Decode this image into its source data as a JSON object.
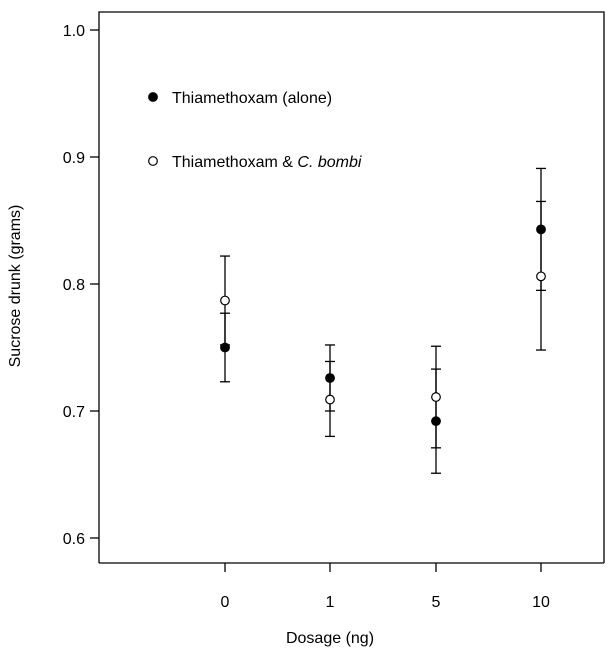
{
  "chart_data": {
    "type": "scatter",
    "title": "",
    "xlabel": "Dosage (ng)",
    "ylabel": "Sucrose drunk (grams)",
    "categories": [
      "0",
      "1",
      "5",
      "10"
    ],
    "ylim": [
      0.6,
      1.0
    ],
    "yticks": [
      "0.6",
      "0.7",
      "0.8",
      "0.9",
      "1.0"
    ],
    "grid": false,
    "legend_position": "top-left",
    "series": [
      {
        "name": "Thiamethoxam (alone)",
        "marker": "filled-circle",
        "values": [
          0.75,
          0.726,
          0.692,
          0.843
        ],
        "error_low": [
          0.723,
          0.7,
          0.651,
          0.795
        ],
        "error_high": [
          0.777,
          0.752,
          0.733,
          0.891
        ]
      },
      {
        "name": "Thiamethoxam & C. bombi",
        "name_prefix": "Thiamethoxam & ",
        "name_italic": "C. bombi",
        "marker": "open-circle",
        "values": [
          0.787,
          0.709,
          0.711,
          0.806
        ],
        "error_low": [
          0.752,
          0.68,
          0.671,
          0.748
        ],
        "error_high": [
          0.822,
          0.739,
          0.751,
          0.865
        ]
      }
    ],
    "colors": {
      "ink": "#000000",
      "background": "#ffffff"
    }
  }
}
